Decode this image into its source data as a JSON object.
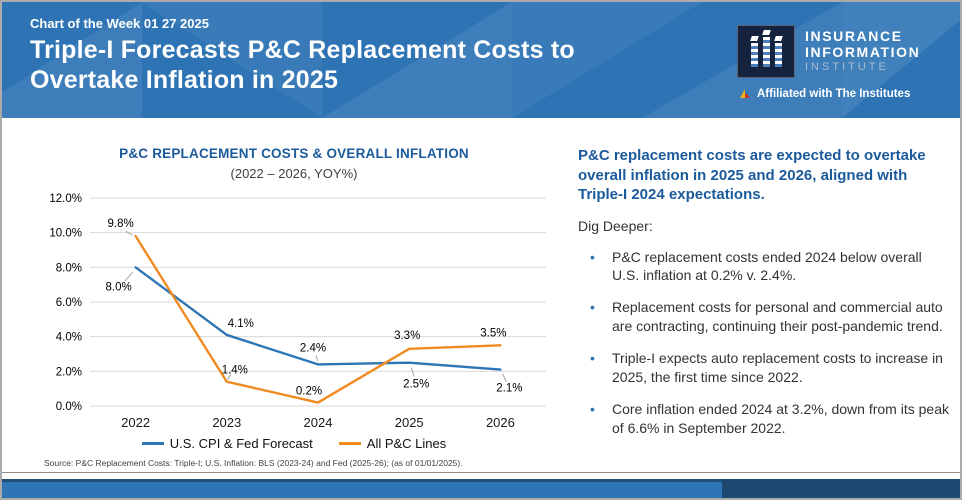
{
  "header": {
    "kicker": "Chart of the Week 01 27 2025",
    "title_line1": "Triple-I Forecasts P&C Replacement Costs to",
    "title_line2": "Overtake Inflation in 2025",
    "logo": {
      "line1": "INSURANCE",
      "line2": "INFORMATION",
      "line3": "INSTITUTE",
      "affiliation": "Affiliated with The Institutes"
    }
  },
  "chart_data": {
    "type": "line",
    "title": "P&C REPLACEMENT COSTS & OVERALL INFLATION",
    "subtitle": "(2022 – 2026, YOY%)",
    "categories": [
      "2022",
      "2023",
      "2024",
      "2025",
      "2026"
    ],
    "series": [
      {
        "name": "U.S. CPI & Fed Forecast",
        "color": "#2E75B6",
        "values": [
          8.0,
          4.1,
          2.4,
          2.5,
          2.1
        ]
      },
      {
        "name": "All P&C Lines",
        "color": "#F08A21",
        "values": [
          9.8,
          1.4,
          0.2,
          3.3,
          3.5
        ]
      }
    ],
    "ylim": [
      0,
      12
    ],
    "ytick_step": 2,
    "ytick_labels": [
      "0.0%",
      "2.0%",
      "4.0%",
      "6.0%",
      "8.0%",
      "10.0%",
      "12.0%"
    ],
    "grid": true,
    "legend_position": "bottom",
    "data_label_format": "percent_one_decimal"
  },
  "source": {
    "text": "Source: P&C Replacement Costs: Triple-I; U.S. Inflation: BLS (2023-24) and Fed (2025-26); (as of 01/01/2025)."
  },
  "panel": {
    "heading": "P&C replacement costs are expected to overtake overall inflation in 2025 and 2026, aligned with Triple-I 2024 expectations.",
    "dig_deeper": "Dig Deeper:",
    "bullets": [
      "P&C replacement costs ended 2024 below overall U.S. inflation at 0.2% v. 2.4%.",
      "Replacement costs for personal and commercial auto are contracting, continuing their post-pandemic trend.",
      "Triple-I expects auto replacement costs to increase in 2025, the first time since 2022.",
      "Core inflation ended 2024 at 3.2%, down from its peak of 6.6% in September 2022."
    ]
  },
  "colors": {
    "header_bg": "#2E74B5",
    "footer_bar": "#2E75B6",
    "footer_dark": "#1D4971",
    "accent_heading": "#1B5A9B",
    "logo_box_bg": "#16233E",
    "gridline": "#D9D9D9",
    "bullet": "#2E75B6"
  }
}
